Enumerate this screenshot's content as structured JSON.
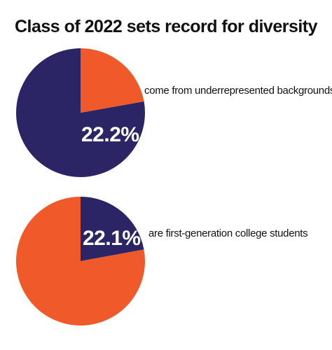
{
  "title": "Class of 2022 sets record for diversity",
  "colors": {
    "navy": "#2b2566",
    "orange": "#f0592a"
  },
  "chart_data": [
    {
      "type": "pie",
      "slices": [
        {
          "label": "22.2%",
          "value": 22.2,
          "color": "#f0592a"
        },
        {
          "label": "",
          "value": 77.8,
          "color": "#2b2566"
        }
      ],
      "annotation": "come from underrepresented backgrounds"
    },
    {
      "type": "pie",
      "slices": [
        {
          "label": "22.1%",
          "value": 22.1,
          "color": "#2b2566"
        },
        {
          "label": "",
          "value": 77.9,
          "color": "#f0592a"
        }
      ],
      "annotation": "are first-generation college students"
    }
  ]
}
